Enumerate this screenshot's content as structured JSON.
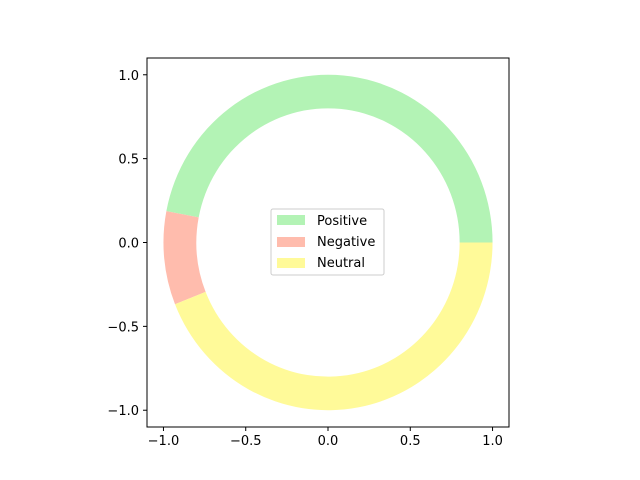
{
  "chart_data": {
    "type": "pie",
    "style": "donut",
    "title": "",
    "xlabel": "",
    "ylabel": "",
    "xlim": [
      -1.1,
      1.1
    ],
    "ylim": [
      -1.1,
      1.1
    ],
    "outer_radius": 1.0,
    "inner_radius": 0.8,
    "start_angle_deg": 0,
    "direction": "counterclockwise",
    "grid": false,
    "legend_position": "center",
    "xticks": [
      -1.0,
      -0.5,
      0.0,
      0.5,
      1.0
    ],
    "yticks": [
      -1.0,
      -0.5,
      0.0,
      0.5,
      1.0
    ],
    "xtick_labels": [
      "−1.0",
      "−0.5",
      "0.0",
      "0.5",
      "1.0"
    ],
    "ytick_labels": [
      "−1.0",
      "−0.5",
      "0.0",
      "0.5",
      "1.0"
    ],
    "slices": [
      {
        "label": "Positive",
        "value": 47,
        "color": "#b3f3b5"
      },
      {
        "label": "Negative",
        "value": 9,
        "color": "#ffbcad"
      },
      {
        "label": "Neutral",
        "value": 44,
        "color": "#fffa99"
      }
    ]
  }
}
